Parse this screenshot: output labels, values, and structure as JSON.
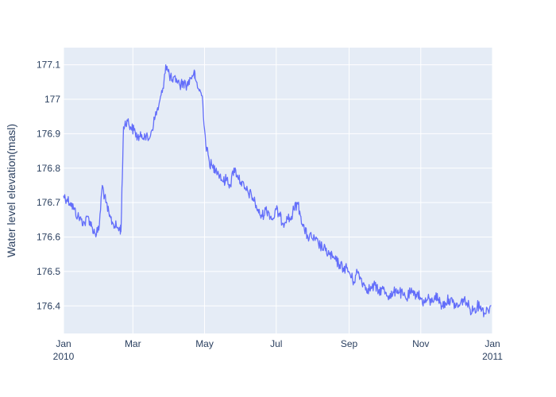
{
  "chart_data": {
    "type": "line",
    "title": "",
    "xlabel": "",
    "ylabel": "Water level elevation(masl)",
    "xlim": [
      "2010-01-01",
      "2011-01-01"
    ],
    "ylim": [
      176.32,
      177.15
    ],
    "grid": true,
    "legend": "none",
    "colors": {
      "plot_background": "#e5ecf6",
      "grid": "#ffffff",
      "line": "#636efa",
      "text": "#2a3f5f"
    },
    "x_ticks": [
      {
        "date": "2010-01-01",
        "line1": "Jan",
        "line2": "2010"
      },
      {
        "date": "2010-03-01",
        "line1": "Mar",
        "line2": ""
      },
      {
        "date": "2010-05-01",
        "line1": "May",
        "line2": ""
      },
      {
        "date": "2010-07-01",
        "line1": "Jul",
        "line2": ""
      },
      {
        "date": "2010-09-01",
        "line1": "Sep",
        "line2": ""
      },
      {
        "date": "2010-11-01",
        "line1": "Nov",
        "line2": ""
      },
      {
        "date": "2011-01-01",
        "line1": "Jan",
        "line2": "2011"
      }
    ],
    "y_ticks": [
      {
        "value": 176.4,
        "label": "176.4"
      },
      {
        "value": 176.5,
        "label": "176.5"
      },
      {
        "value": 176.6,
        "label": "176.6"
      },
      {
        "value": 176.7,
        "label": "176.7"
      },
      {
        "value": 176.8,
        "label": "176.8"
      },
      {
        "value": 176.9,
        "label": "176.9"
      },
      {
        "value": 177.0,
        "label": "177"
      },
      {
        "value": 177.1,
        "label": "177.1"
      }
    ],
    "series": [
      {
        "x": [
          "2010-01-01",
          "2010-01-04",
          "2010-01-07",
          "2010-01-10",
          "2010-01-13",
          "2010-01-16",
          "2010-01-19",
          "2010-01-22",
          "2010-01-25",
          "2010-01-28",
          "2010-01-31",
          "2010-02-03",
          "2010-02-06",
          "2010-02-09",
          "2010-02-12",
          "2010-02-15",
          "2010-02-18",
          "2010-02-19",
          "2010-02-21",
          "2010-02-24",
          "2010-02-27",
          "2010-03-02",
          "2010-03-05",
          "2010-03-08",
          "2010-03-11",
          "2010-03-14",
          "2010-03-17",
          "2010-03-20",
          "2010-03-23",
          "2010-03-26",
          "2010-03-29",
          "2010-04-01",
          "2010-04-04",
          "2010-04-07",
          "2010-04-10",
          "2010-04-13",
          "2010-04-16",
          "2010-04-19",
          "2010-04-22",
          "2010-04-23",
          "2010-04-26",
          "2010-04-29",
          "2010-05-02",
          "2010-05-05",
          "2010-05-08",
          "2010-05-11",
          "2010-05-14",
          "2010-05-17",
          "2010-05-20",
          "2010-05-23",
          "2010-05-26",
          "2010-05-29",
          "2010-06-01",
          "2010-06-04",
          "2010-06-07",
          "2010-06-10",
          "2010-06-13",
          "2010-06-16",
          "2010-06-19",
          "2010-06-22",
          "2010-06-25",
          "2010-06-28",
          "2010-07-01",
          "2010-07-04",
          "2010-07-07",
          "2010-07-10",
          "2010-07-13",
          "2010-07-16",
          "2010-07-19",
          "2010-07-22",
          "2010-07-25",
          "2010-07-28",
          "2010-07-31",
          "2010-08-03",
          "2010-08-06",
          "2010-08-09",
          "2010-08-12",
          "2010-08-15",
          "2010-08-18",
          "2010-08-21",
          "2010-08-24",
          "2010-08-27",
          "2010-08-30",
          "2010-09-02",
          "2010-09-05",
          "2010-09-08",
          "2010-09-11",
          "2010-09-14",
          "2010-09-17",
          "2010-09-20",
          "2010-09-23",
          "2010-09-26",
          "2010-09-29",
          "2010-10-02",
          "2010-10-05",
          "2010-10-08",
          "2010-10-11",
          "2010-10-14",
          "2010-10-17",
          "2010-10-20",
          "2010-10-23",
          "2010-10-26",
          "2010-10-29",
          "2010-11-01",
          "2010-11-04",
          "2010-11-07",
          "2010-11-10",
          "2010-11-13",
          "2010-11-16",
          "2010-11-19",
          "2010-11-22",
          "2010-11-25",
          "2010-11-28",
          "2010-12-01",
          "2010-12-04",
          "2010-12-07",
          "2010-12-10",
          "2010-12-13",
          "2010-12-16",
          "2010-12-19",
          "2010-12-22",
          "2010-12-25",
          "2010-12-28",
          "2010-12-31"
        ],
        "y": [
          176.72,
          176.71,
          176.7,
          176.68,
          176.66,
          176.65,
          176.64,
          176.66,
          176.63,
          176.61,
          176.62,
          176.75,
          176.7,
          176.66,
          176.64,
          176.63,
          176.62,
          176.63,
          176.92,
          176.94,
          176.92,
          176.91,
          176.89,
          176.89,
          176.9,
          176.88,
          176.91,
          176.95,
          176.98,
          177.02,
          177.1,
          177.07,
          177.05,
          177.06,
          177.04,
          177.05,
          177.04,
          177.06,
          177.08,
          177.06,
          177.03,
          177.01,
          176.87,
          176.82,
          176.8,
          176.8,
          176.78,
          176.76,
          176.77,
          176.75,
          176.8,
          176.78,
          176.76,
          176.74,
          176.73,
          176.72,
          176.7,
          176.67,
          176.66,
          176.68,
          176.67,
          176.65,
          176.68,
          176.66,
          176.64,
          176.66,
          176.65,
          176.68,
          176.7,
          176.66,
          176.62,
          176.6,
          176.6,
          176.59,
          176.58,
          176.57,
          176.56,
          176.55,
          176.54,
          176.53,
          176.52,
          176.51,
          176.51,
          176.49,
          176.47,
          176.5,
          176.48,
          176.46,
          176.45,
          176.45,
          176.46,
          176.44,
          176.45,
          176.44,
          176.43,
          176.43,
          176.45,
          176.44,
          176.43,
          176.42,
          176.44,
          176.43,
          176.44,
          176.42,
          176.41,
          176.42,
          176.41,
          176.43,
          176.42,
          176.4,
          176.41,
          176.42,
          176.41,
          176.4,
          176.4,
          176.42,
          176.41,
          176.39,
          176.39,
          176.4,
          176.4,
          176.38,
          176.39,
          176.4
        ]
      }
    ]
  }
}
